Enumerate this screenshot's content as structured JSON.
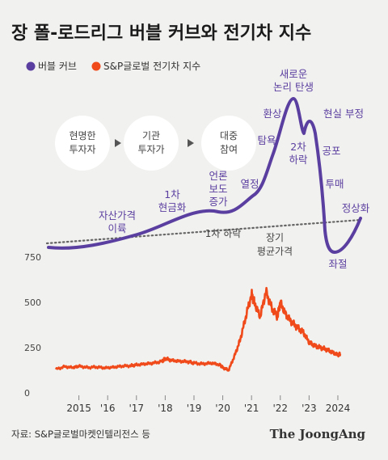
{
  "title": "장 폴-로드리그 버블 커브와 전기차 지수",
  "legend": [
    {
      "label": "버블 커브",
      "color": "#5b3fa0"
    },
    {
      "label": "S&P글로벌 전기차 지수",
      "color": "#f04a1a"
    }
  ],
  "stages": [
    [
      "현명한",
      "투자자"
    ],
    [
      "기관",
      "투자가"
    ],
    [
      "대중",
      "참여"
    ]
  ],
  "bubble_annotations": [
    [
      "자산가격",
      "이륙"
    ],
    [
      "1차",
      "현금화"
    ],
    [
      "언론",
      "보도",
      "증가"
    ],
    [
      "열정"
    ],
    [
      "탐욕"
    ],
    [
      "환상"
    ],
    [
      "새로운",
      "논리 탄생"
    ],
    [
      "현실 부정"
    ],
    [
      "2차",
      "하락"
    ],
    [
      "공포"
    ],
    [
      "투매"
    ],
    [
      "좌절"
    ],
    [
      "정상화"
    ]
  ],
  "dotted_labels": [
    "1차 하락",
    "장기",
    "평균가격"
  ],
  "source": "자료: S&P글로벌마켓인텔리전스 등",
  "brand": "The JoongAng",
  "chart_data": {
    "type": "line",
    "title": "장 폴-로드리그 버블 커브와 전기차 지수",
    "xlabel": "",
    "ylabel": "",
    "x_ticks": [
      "2015",
      "'16",
      "'17",
      "'18",
      "'19",
      "'20",
      "'21",
      "'22",
      "'23",
      "2024"
    ],
    "ylim": [
      0,
      750
    ],
    "y_ticks": [
      0,
      250,
      500,
      750
    ],
    "grid": false,
    "legend_position": "top-left",
    "series": [
      {
        "name": "S&P글로벌 전기차 지수",
        "color": "#f04a1a",
        "x": [
          2014.2,
          2014.5,
          2014.8,
          2015.0,
          2015.3,
          2015.6,
          2015.9,
          2016.2,
          2016.5,
          2016.8,
          2017.0,
          2017.3,
          2017.6,
          2017.9,
          2018.0,
          2018.2,
          2018.5,
          2018.8,
          2019.0,
          2019.3,
          2019.6,
          2019.9,
          2020.0,
          2020.2,
          2020.4,
          2020.6,
          2020.8,
          2021.0,
          2021.1,
          2021.3,
          2021.5,
          2021.7,
          2021.9,
          2022.0,
          2022.2,
          2022.4,
          2022.6,
          2022.8,
          2023.0,
          2023.2,
          2023.4,
          2023.6,
          2023.8,
          2024.0,
          2024.1
        ],
        "values": [
          130,
          145,
          140,
          148,
          140,
          143,
          138,
          142,
          148,
          150,
          155,
          160,
          165,
          175,
          190,
          180,
          175,
          172,
          165,
          160,
          165,
          155,
          140,
          125,
          200,
          290,
          420,
          545,
          500,
          420,
          560,
          470,
          420,
          500,
          430,
          390,
          360,
          335,
          280,
          260,
          250,
          240,
          225,
          210,
          215
        ]
      }
    ],
    "bubble_curve": {
      "name": "버블 커브",
      "color": "#5b3fa0",
      "note": "Schematic curve; no numeric axis."
    },
    "long_term_average_label": "장기 평균가격"
  }
}
